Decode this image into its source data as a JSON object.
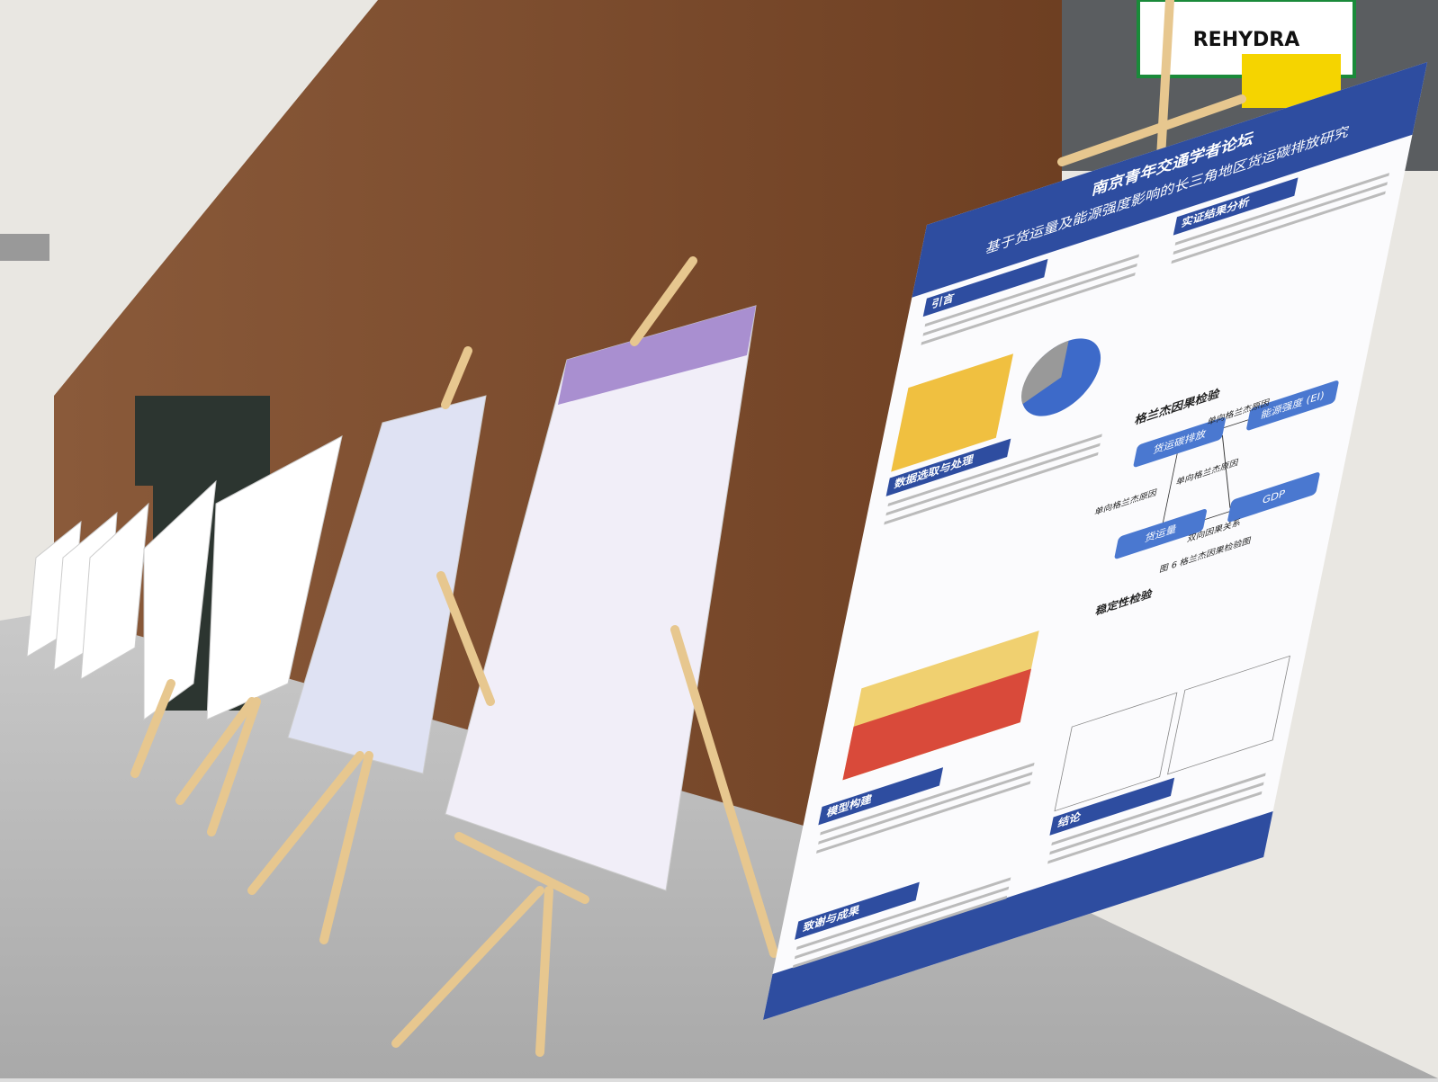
{
  "sign": "REHYDRA",
  "poster": {
    "forum": "南京青年交通学者论坛",
    "title": "基于货运量及能源强度影响的长三角地区货运碳排放研究",
    "sections": [
      "引言",
      "数据选取与处理",
      "模型构建",
      "实证结果分析",
      "结论",
      "致谢与成果"
    ],
    "granger": {
      "heading": "格兰杰因果检验",
      "nodes": [
        "货运碳排放",
        "能源强度 (EI)",
        "货运量",
        "GDP"
      ],
      "edges": [
        "单向格兰杰原因",
        "单向格兰杰原因",
        "单向格兰杰原因",
        "双向因果关系"
      ],
      "caption": "图 6 格兰杰因果检验图"
    },
    "stability": "稳定性检验"
  }
}
